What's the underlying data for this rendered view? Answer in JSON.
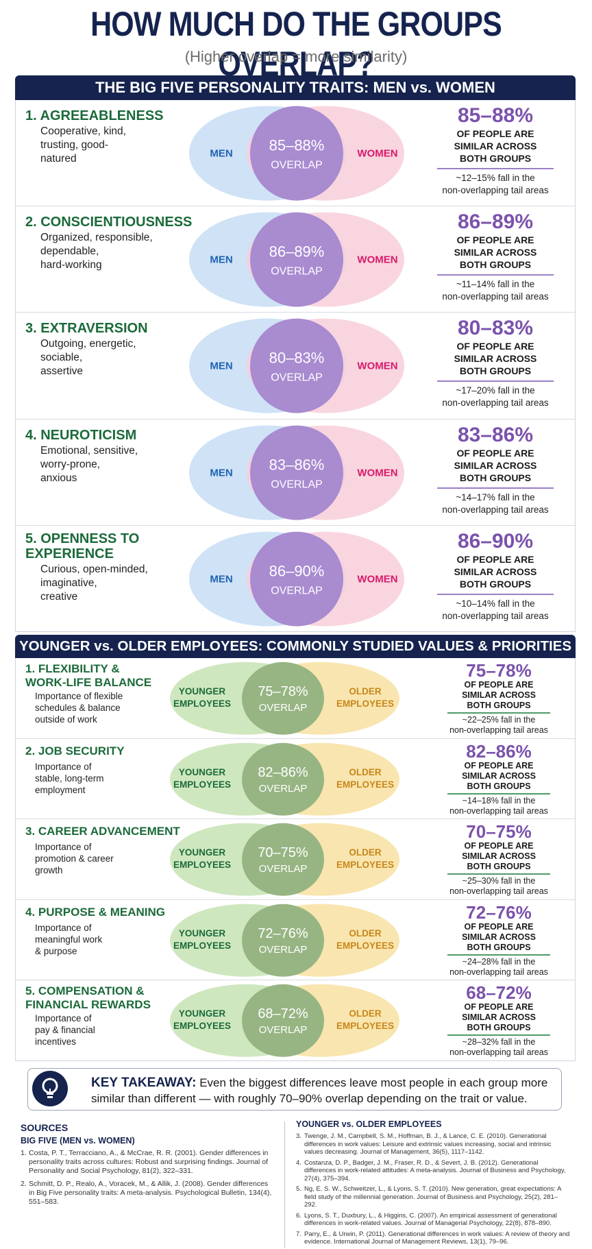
{
  "title": "HOW MUCH DO THE GROUPS OVERLAP?",
  "subtitle": "(Higher overlap = more similarity)",
  "colors": {
    "navy": "#15234e",
    "green": "#1b6a3a",
    "purple": "#7b52ab",
    "men": "#cfe2f6",
    "women": "#f8cfd9",
    "overlap_purple": "#a98bd0",
    "younger": "#cfe7bf",
    "older": "#f8e2a6",
    "overlap_green": "#97b583"
  },
  "big_five": {
    "header": "THE BIG FIVE PERSONALITY TRAITS: MEN vs. WOMEN",
    "left_label": "MEN",
    "right_label": "WOMEN",
    "overlap_word": "OVERLAP",
    "stat_label_lines": [
      "OF PEOPLE ARE",
      "SIMILAR ACROSS",
      "BOTH GROUPS"
    ],
    "rows": [
      {
        "title_lines": [
          "1. AGREEABLENESS"
        ],
        "desc_lines": [
          "Cooperative, kind,",
          "trusting, good-",
          "natured"
        ],
        "overlap": "85–88%",
        "note_lines": [
          "~12–15% fall in the",
          "non-overlapping tail areas"
        ]
      },
      {
        "title_lines": [
          "2. CONSCIENTIOUSNESS"
        ],
        "desc_lines": [
          "Organized, responsible,",
          "dependable,",
          "hard-working"
        ],
        "overlap": "86–89%",
        "note_lines": [
          "~11–14% fall in the",
          "non-overlapping tail areas"
        ]
      },
      {
        "title_lines": [
          "3. EXTRAVERSION"
        ],
        "desc_lines": [
          "Outgoing, energetic,",
          "sociable,",
          "assertive"
        ],
        "overlap": "80–83%",
        "note_lines": [
          "~17–20% fall in the",
          "non-overlapping tail areas"
        ]
      },
      {
        "title_lines": [
          "4. NEUROTICISM"
        ],
        "desc_lines": [
          "Emotional, sensitive,",
          "worry-prone,",
          "anxious"
        ],
        "overlap": "83–86%",
        "note_lines": [
          "~14–17% fall in the",
          "non-overlapping tail areas"
        ]
      },
      {
        "title_lines": [
          "5. OPENNESS TO",
          "EXPERIENCE"
        ],
        "desc_lines": [
          "Curious, open-minded,",
          "imaginative,",
          "creative"
        ],
        "overlap": "86–90%",
        "note_lines": [
          "~10–14% fall in the",
          "non-overlapping tail areas"
        ]
      }
    ]
  },
  "employees": {
    "header": "YOUNGER vs. OLDER EMPLOYEES: COMMONLY STUDIED VALUES & PRIORITIES",
    "left_label_lines": [
      "YOUNGER",
      "EMPLOYEES"
    ],
    "right_label_lines": [
      "OLDER",
      "EMPLOYEES"
    ],
    "overlap_word": "OVERLAP",
    "stat_label_lines": [
      "OF PEOPLE ARE",
      "SIMILAR ACROSS",
      "BOTH GROUPS"
    ],
    "rows": [
      {
        "title_lines": [
          "1. FLEXIBILITY &",
          "WORK-LIFE BALANCE"
        ],
        "desc_lines": [
          "Importance of flexible",
          "schedules & balance",
          "outside of work"
        ],
        "overlap": "75–78%",
        "note_lines": [
          "~22–25% fall in the",
          "non-overlapping tail areas"
        ]
      },
      {
        "title_lines": [
          "2. JOB SECURITY"
        ],
        "desc_lines": [
          "Importance of",
          "stable, long-term",
          "employment"
        ],
        "overlap": "82–86%",
        "note_lines": [
          "~14–18% fall in the",
          "non-overlapping tail areas"
        ]
      },
      {
        "title_lines": [
          "3. CAREER ADVANCEMENT"
        ],
        "desc_lines": [
          "Importance of",
          "promotion & career",
          "growth"
        ],
        "overlap": "70–75%",
        "note_lines": [
          "~25–30% fall in the",
          "non-overlapping tail areas"
        ]
      },
      {
        "title_lines": [
          "4. PURPOSE & MEANING"
        ],
        "desc_lines": [
          "Importance of",
          "meaningful work",
          "& purpose"
        ],
        "overlap": "72–76%",
        "note_lines": [
          "~24–28% fall in the",
          "non-overlapping tail areas"
        ]
      },
      {
        "title_lines": [
          "5. COMPENSATION &",
          "FINANCIAL REWARDS"
        ],
        "desc_lines": [
          "Importance of",
          "pay & financial",
          "incentives"
        ],
        "overlap": "68–72%",
        "note_lines": [
          "~28–32% fall in the",
          "non-overlapping tail areas"
        ]
      }
    ]
  },
  "takeaway": {
    "key": "KEY TAKEAWAY:",
    "text": "Even the biggest differences leave most people in each group more similar than different — with roughly 70–90% overlap depending on the trait or value.",
    "icon": "lightbulb-icon"
  },
  "sources": {
    "heading": "SOURCES",
    "big_five_heading": "BIG FIVE (MEN vs. WOMEN)",
    "big_five": [
      "Costa, P. T., Terracciano, A., & McCrae, R. R. (2001). Gender differences in personality traits across cultures: Robust and surprising findings. Journal of Personality and Social Psychology, 81(2), 322–331.",
      "Schmitt, D. P., Realo, A., Voracek, M., & Allik, J. (2008). Gender differences in Big Five personality traits: A meta-analysis. Psychological Bulletin, 134(4), 551–583."
    ],
    "employees_heading": "YOUNGER vs. OLDER EMPLOYEES",
    "employees": [
      "Twenge, J. M., Campbell, S. M., Hoffman, B. J., & Lance, C. E. (2010). Generational differences in work values: Leisure and extrinsic values increasing, social and intrinsic values decreasing. Journal of Management, 36(5), 1117–1142.",
      "Costanza, D. P., Badger, J. M., Fraser, R. D., & Severt, J. B. (2012). Generational differences in work-related attitudes: A meta-analysis. Journal of Business and Psychology, 27(4), 375–394.",
      "Ng, E. S. W., Schweitzer, L., & Lyons, S. T. (2010). New generation, great expectations: A field study of the millennial generation. Journal of Business and Psychology, 25(2), 281–292.",
      "Lyons, S. T., Duxbury, L., & Higgins, C. (2007). An empirical assessment of generational differences in work-related values. Journal of Managerial Psychology, 22(8), 878–890.",
      "Parry, E., & Urwin, P. (2011). Generational differences in work values: A review of theory and evidence. International Journal of Management Reviews, 13(1), 79–96."
    ],
    "big_five_start": 1,
    "employees_start": 3
  }
}
